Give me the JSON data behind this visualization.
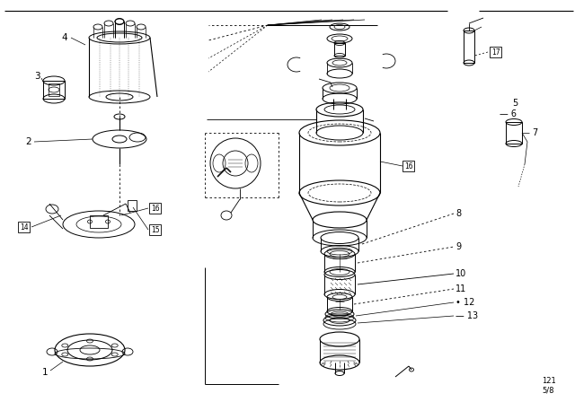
{
  "bg_color": "#ffffff",
  "line_color": "#000000",
  "fig_width": 6.4,
  "fig_height": 4.48,
  "dpi": 100,
  "watermark": "121\n5/8",
  "lw": 0.7
}
